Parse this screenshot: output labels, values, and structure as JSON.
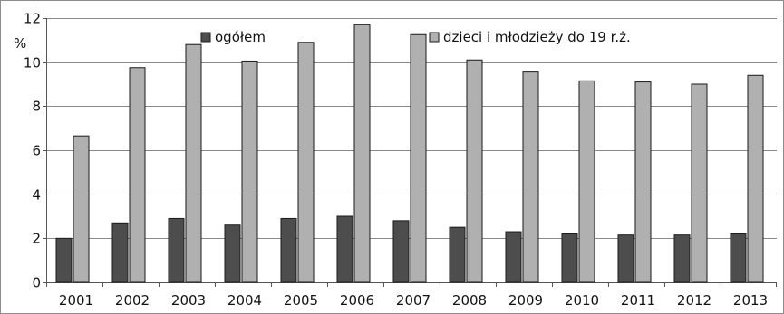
{
  "chart_data": {
    "type": "bar",
    "categories": [
      "2001",
      "2002",
      "2003",
      "2004",
      "2005",
      "2006",
      "2007",
      "2008",
      "2009",
      "2010",
      "2011",
      "2012",
      "2013"
    ],
    "series": [
      {
        "name": "ogółem",
        "color": "#4d4d4d",
        "values": [
          2.0,
          2.7,
          2.9,
          2.6,
          2.9,
          3.0,
          2.8,
          2.5,
          2.3,
          2.2,
          2.15,
          2.15,
          2.2
        ]
      },
      {
        "name": "dzieci i młodzieży do 19 r.ż.",
        "color": "#b0b0b0",
        "values": [
          6.65,
          9.75,
          10.8,
          10.05,
          10.9,
          11.7,
          11.25,
          10.1,
          9.55,
          9.15,
          9.1,
          9.0,
          9.4
        ]
      }
    ],
    "y_unit": "%",
    "ylim": [
      0,
      12
    ],
    "yticks": [
      0,
      2,
      4,
      6,
      8,
      10,
      12
    ],
    "ytick_labels": [
      "0",
      "2",
      "4",
      "6",
      "8",
      "10",
      "12"
    ],
    "grid": true,
    "legend": "top-center"
  }
}
